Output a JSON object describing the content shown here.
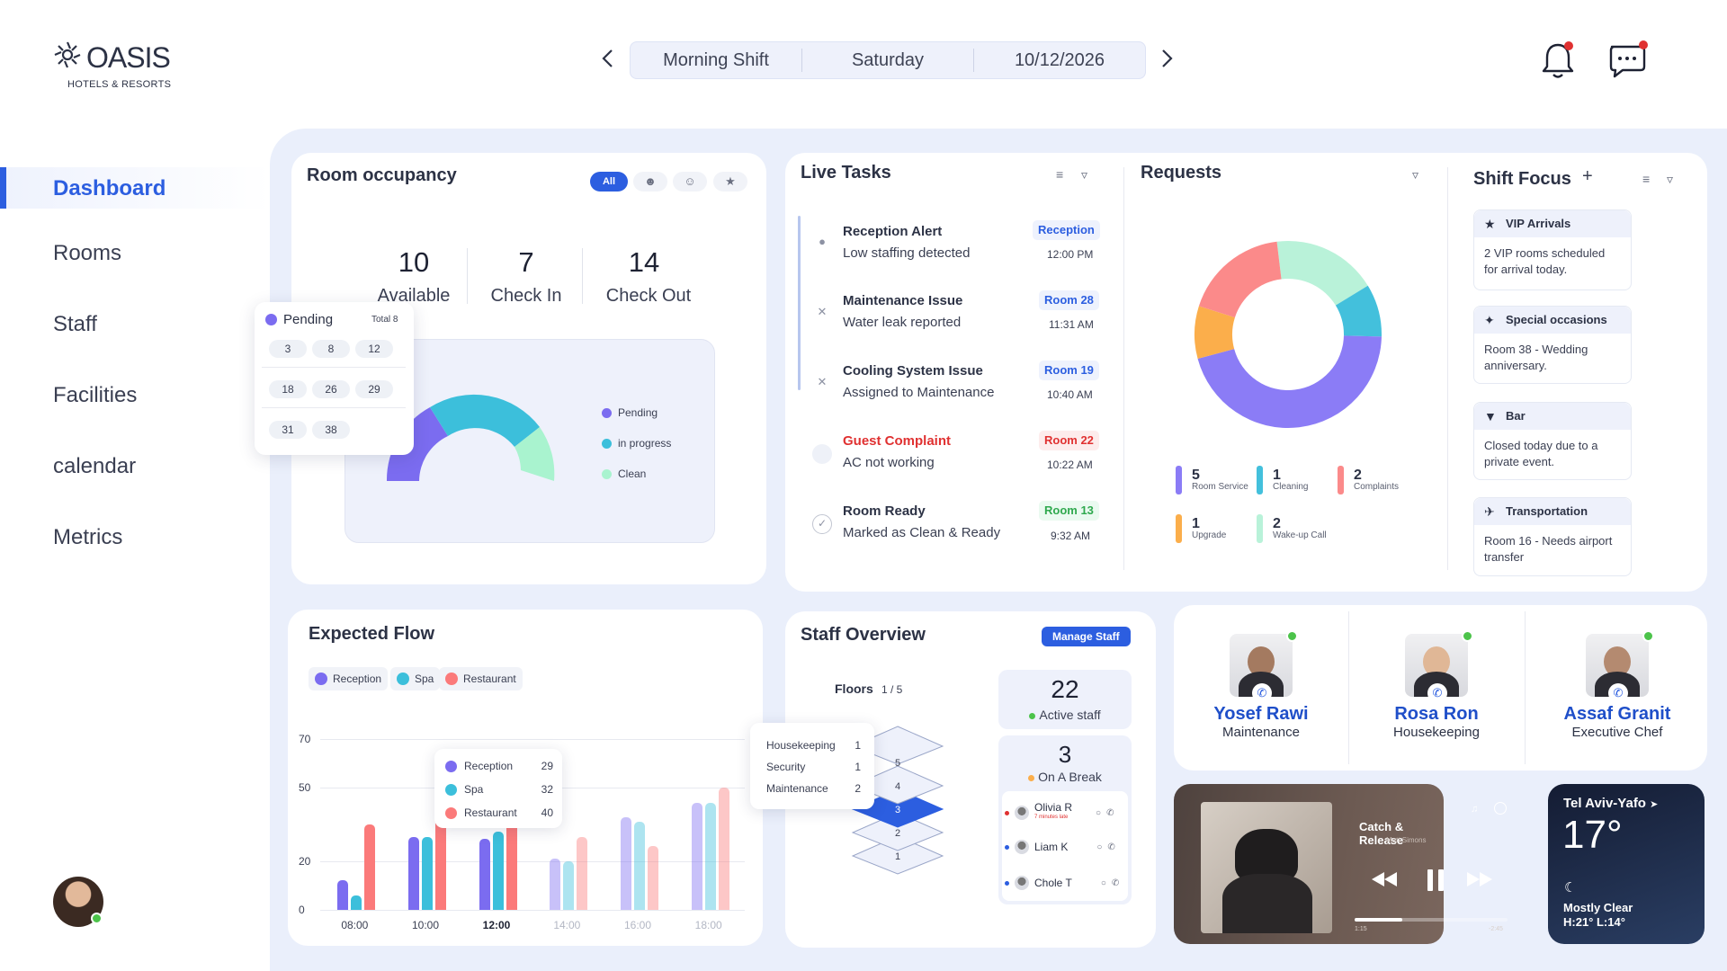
{
  "brand": {
    "name": "OASIS",
    "subtitle": "HOTELS & RESORTS"
  },
  "topbar": {
    "shift": "Morning Shift",
    "day": "Saturday",
    "date": "10/12/2026",
    "prev_icon": "chevron-left-icon",
    "next_icon": "chevron-right-icon"
  },
  "header_icons": {
    "notifications": "bell-icon",
    "messages": "chat-icon"
  },
  "sidebar": {
    "items": [
      {
        "label": "Dashboard",
        "active": true
      },
      {
        "label": "Rooms"
      },
      {
        "label": "Staff"
      },
      {
        "label": "Facilities"
      },
      {
        "label": "calendar"
      },
      {
        "label": "Metrics"
      }
    ]
  },
  "occupancy": {
    "title": "Room occupancy",
    "filter_all": "All",
    "stats": [
      {
        "value": "10",
        "label": "Available"
      },
      {
        "value": "7",
        "label": "Check  In"
      },
      {
        "value": "14",
        "label": "Check Out"
      }
    ],
    "legend": [
      {
        "label": "Pending",
        "color": "#7b6cf0"
      },
      {
        "label": "in progress",
        "color": "#3cbfdb"
      },
      {
        "label": "Clean",
        "color": "#a9f3cf"
      }
    ],
    "pending_popup": {
      "title": "Pending",
      "total": "Total 8",
      "rooms": [
        "3",
        "8",
        "12",
        "18",
        "26",
        "29",
        "31",
        "38"
      ]
    }
  },
  "live_tasks": {
    "title": "Live Tasks",
    "items": [
      {
        "title": "Reception Alert",
        "sub": "Low staffing detected",
        "badge": "Reception",
        "time": "12:00 PM",
        "kind": "info",
        "icon": "alert-circle-icon"
      },
      {
        "title": "Maintenance Issue",
        "sub": "Water leak reported",
        "badge": "Room 28",
        "time": "11:31 AM",
        "kind": "info",
        "icon": "tools-icon"
      },
      {
        "title": "Cooling System Issue",
        "sub": "Assigned to Maintenance",
        "badge": "Room 19",
        "time": "10:40 AM",
        "kind": "info",
        "icon": "tools-icon"
      },
      {
        "title": "Guest Complaint",
        "sub": "AC not working",
        "badge": "Room 22",
        "time": "10:22 AM",
        "kind": "alert",
        "icon": "circle-icon"
      },
      {
        "title": "Room Ready",
        "sub": "Marked as Clean & Ready",
        "badge": "Room 13",
        "time": "9:32 AM",
        "kind": "ok",
        "icon": "check-circle-icon"
      }
    ]
  },
  "requests": {
    "title": "Requests",
    "chart_data": {
      "type": "pie",
      "donut": true,
      "slices": [
        {
          "label": "Room Service",
          "value": 5,
          "color": "#8b7cf6"
        },
        {
          "label": "Cleaning",
          "value": 1,
          "color": "#43c0dc"
        },
        {
          "label": "Complaints",
          "value": 2,
          "color": "#fb8a8a"
        },
        {
          "label": "Upgrade",
          "value": 1,
          "color": "#fbae4b"
        },
        {
          "label": "Wake-up Call",
          "value": 2,
          "color": "#b9f2d9"
        }
      ]
    },
    "legend": [
      {
        "value": "5",
        "label": "Room Service",
        "color": "#8b7cf6"
      },
      {
        "value": "1",
        "label": "Cleaning",
        "color": "#43c0dc"
      },
      {
        "value": "2",
        "label": "Complaints",
        "color": "#fb8a8a"
      },
      {
        "value": "1",
        "label": "Upgrade",
        "color": "#fbae4b"
      },
      {
        "value": "2",
        "label": "Wake-up Call",
        "color": "#b9f2d9"
      }
    ]
  },
  "shift_focus": {
    "title": "Shift Focus",
    "add": "+",
    "items": [
      {
        "title": "VIP Arrivals",
        "body": "2 VIP rooms scheduled for arrival today.",
        "icon": "star-icon"
      },
      {
        "title": "Special occasions",
        "body": "Room 38 - Wedding anniversary.",
        "icon": "party-icon"
      },
      {
        "title": "Bar",
        "body": "Closed today due to a private event.",
        "icon": "cocktail-icon"
      },
      {
        "title": "Transportation",
        "body": "Room 16 - Needs airport transfer",
        "icon": "plane-icon"
      }
    ]
  },
  "expected_flow": {
    "title": "Expected Flow",
    "chart_data": {
      "type": "bar",
      "categories": [
        "08:00",
        "10:00",
        "12:00",
        "14:00",
        "16:00",
        "18:00"
      ],
      "series": [
        {
          "name": "Reception",
          "color": "#7b6cf0",
          "values": [
            12,
            30,
            29,
            21,
            38,
            44
          ]
        },
        {
          "name": "Spa",
          "color": "#3cbfdb",
          "values": [
            6,
            30,
            32,
            20,
            36,
            44
          ]
        },
        {
          "name": "Restaurant",
          "color": "#fb7a7a",
          "values": [
            35,
            58,
            40,
            30,
            26,
            50
          ]
        }
      ],
      "y_ticks": [
        "0",
        "20",
        "50",
        "70"
      ],
      "ylim": [
        0,
        70
      ],
      "highlight_category": "12:00"
    },
    "tooltip": [
      {
        "label": "Reception",
        "value": "29",
        "color": "#7b6cf0"
      },
      {
        "label": "Spa",
        "value": "32",
        "color": "#3cbfdb"
      },
      {
        "label": "Restaurant",
        "value": "40",
        "color": "#fb7a7a"
      }
    ]
  },
  "staff_overview": {
    "title": "Staff Overview",
    "manage_label": "Manage Staff",
    "floors_label": "Floors",
    "floors_value": "1 / 5",
    "floors": [
      "5",
      "4",
      "3",
      "2",
      "1"
    ],
    "active_floor": "3",
    "floor_tooltip": [
      {
        "label": "Housekeeping",
        "value": "1"
      },
      {
        "label": "Security",
        "value": "1"
      },
      {
        "label": "Maintenance",
        "value": "2"
      }
    ],
    "active_count": "22",
    "active_label": "Active staff",
    "break_count": "3",
    "break_label": "On A Break",
    "break_list": [
      {
        "name": "Olivia R",
        "note": "7 minutes late"
      },
      {
        "name": "Liam K",
        "note": ""
      },
      {
        "name": "Chole T",
        "note": ""
      }
    ]
  },
  "contacts": [
    {
      "name": "Yosef Rawi",
      "role": "Maintenance"
    },
    {
      "name": "Rosa Ron",
      "role": "Housekeeping"
    },
    {
      "name": "Assaf Granit",
      "role": "Executive Chef"
    }
  ],
  "music": {
    "track": "Catch & Release",
    "artist": "Matt Simons",
    "elapsed": "1:15",
    "remaining": "-2:45",
    "progress": 0.31
  },
  "weather": {
    "city": "Tel Aviv-Yafo",
    "temp": "17°",
    "condition": "Mostly Clear",
    "range": "H:21° L:14°"
  }
}
